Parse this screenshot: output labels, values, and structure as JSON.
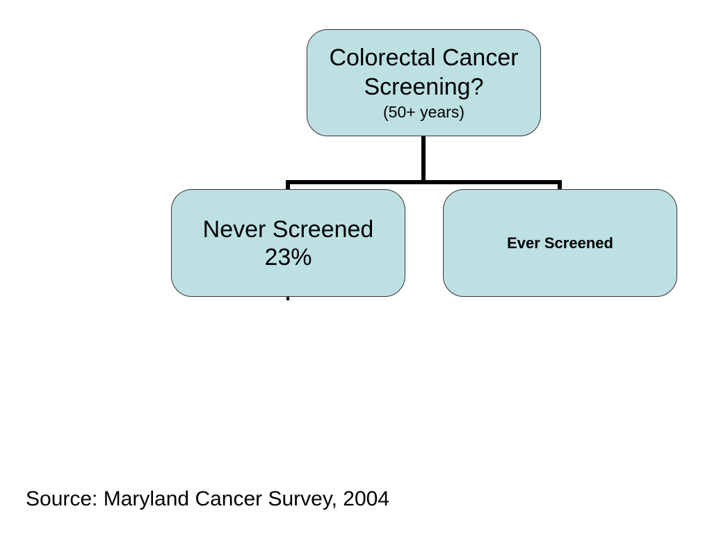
{
  "diagram": {
    "root": {
      "title_line1": "Colorectal Cancer",
      "title_line2": "Screening?",
      "subtitle": "(50+ years)"
    },
    "children": [
      {
        "label": "Never Screened",
        "value": "23%"
      },
      {
        "label": "Ever Screened"
      }
    ],
    "colors": {
      "node_fill": "#bde0e3",
      "node_border": "#333333",
      "connector": "#000000"
    }
  },
  "source": "Source:  Maryland Cancer Survey, 2004"
}
